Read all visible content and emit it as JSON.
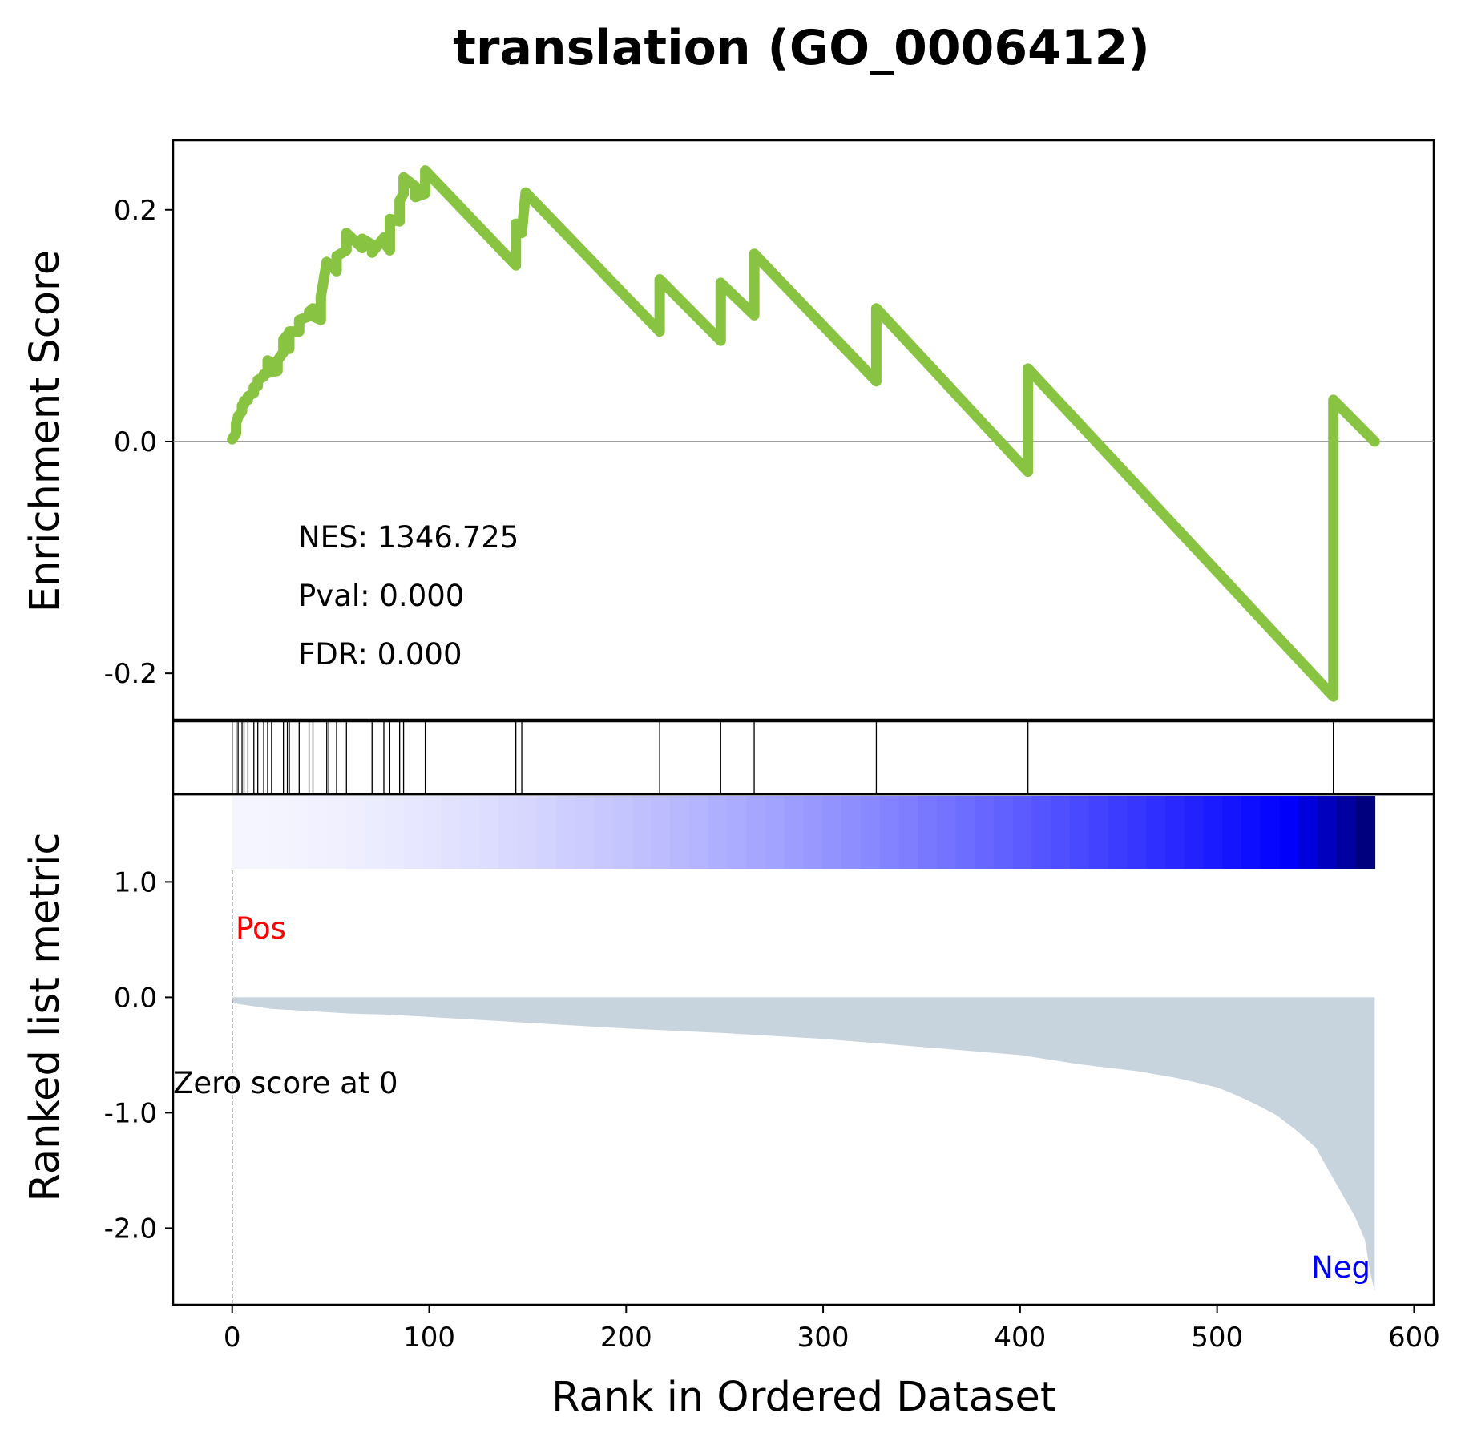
{
  "chart_data": {
    "type": "line",
    "title": "translation (GO_0006412)",
    "xlabel": "Rank in Ordered Dataset",
    "xlim": [
      -30,
      610
    ],
    "x_ticks": [
      0,
      100,
      200,
      300,
      400,
      500,
      600
    ],
    "x_tick_labels": [
      "0",
      "100",
      "200",
      "300",
      "400",
      "500",
      "600"
    ],
    "enrichment_panel": {
      "ylabel": "Enrichment Score",
      "ylim": [
        -0.24,
        0.26
      ],
      "y_ticks": [
        0.2,
        0.0,
        -0.2
      ],
      "y_tick_labels": [
        "0.2",
        "0.0",
        "-0.2"
      ],
      "zero_line": true,
      "line_color": "#88c442",
      "stats": [
        "NES: 1346.725",
        "Pval: 0.000",
        "FDR: 0.000"
      ],
      "series": [
        {
          "x": [
            0,
            2,
            2,
            3,
            3,
            5,
            5,
            6,
            6,
            8,
            8,
            11,
            11,
            13,
            13,
            16,
            16,
            18,
            18,
            20,
            20,
            23,
            23,
            26,
            26,
            28,
            28,
            29,
            29,
            34,
            34,
            39,
            39,
            41,
            41,
            45,
            45,
            48,
            48,
            53,
            53,
            58,
            58,
            66,
            66,
            71,
            71,
            77,
            77,
            80,
            80,
            85,
            85,
            87,
            87,
            93,
            93,
            98,
            98,
            144,
            144,
            147,
            147,
            149,
            149,
            217,
            217,
            248,
            248,
            265,
            265,
            327,
            327,
            404,
            404,
            559,
            559,
            580
          ],
          "values": [
            0.002,
            0.007,
            0.016,
            0.021,
            0.022,
            0.026,
            0.031,
            0.032,
            0.035,
            0.036,
            0.039,
            0.042,
            0.047,
            0.048,
            0.053,
            0.056,
            0.058,
            0.059,
            0.07,
            0.068,
            0.06,
            0.061,
            0.07,
            0.077,
            0.088,
            0.092,
            0.087,
            0.08,
            0.095,
            0.095,
            0.105,
            0.108,
            0.112,
            0.115,
            0.108,
            0.105,
            0.125,
            0.155,
            0.155,
            0.147,
            0.16,
            0.165,
            0.18,
            0.167,
            0.175,
            0.17,
            0.163,
            0.176,
            0.172,
            0.165,
            0.192,
            0.19,
            0.208,
            0.214,
            0.228,
            0.22,
            0.211,
            0.214,
            0.234,
            0.152,
            0.188,
            0.186,
            0.18,
            0.215,
            0.215,
            0.095,
            0.14,
            0.087,
            0.137,
            0.109,
            0.162,
            0.052,
            0.115,
            -0.026,
            0.063,
            -0.22,
            0.036,
            0.0
          ]
        }
      ]
    },
    "hits_panel": {
      "hits": [
        0,
        2,
        3,
        5,
        6,
        8,
        11,
        13,
        16,
        18,
        20,
        26,
        28,
        29,
        34,
        39,
        41,
        48,
        49,
        53,
        58,
        71,
        77,
        80,
        85,
        87,
        98,
        144,
        147,
        217,
        248,
        265,
        327,
        404,
        559
      ]
    },
    "color_bar": {
      "from_color": "#f5f5ff",
      "to_color": "#00007f",
      "x_range": [
        0,
        580
      ]
    },
    "metric_panel": {
      "ylabel": "Ranked list metric",
      "ylim": [
        -2.65,
        1.1
      ],
      "y_ticks": [
        1.0,
        0.0,
        -1.0,
        -2.0
      ],
      "y_tick_labels": [
        "1.0",
        "0.0",
        "-1.0",
        "-2.0"
      ],
      "fill_color": "#c7d3dd",
      "pos_label": "Pos",
      "neg_label": "Neg",
      "zero_label": "Zero score at 0",
      "zero_at": 0,
      "series": [
        {
          "x": [
            0,
            20,
            40,
            60,
            80,
            100,
            150,
            200,
            250,
            300,
            350,
            400,
            430,
            460,
            480,
            500,
            510,
            520,
            530,
            540,
            550,
            555,
            560,
            565,
            570,
            575,
            578,
            580
          ],
          "values": [
            -0.05,
            -0.1,
            -0.12,
            -0.14,
            -0.15,
            -0.17,
            -0.22,
            -0.27,
            -0.31,
            -0.36,
            -0.43,
            -0.5,
            -0.58,
            -0.64,
            -0.7,
            -0.78,
            -0.85,
            -0.93,
            -1.02,
            -1.15,
            -1.3,
            -1.45,
            -1.6,
            -1.75,
            -1.9,
            -2.1,
            -2.4,
            -2.55
          ]
        }
      ]
    }
  }
}
